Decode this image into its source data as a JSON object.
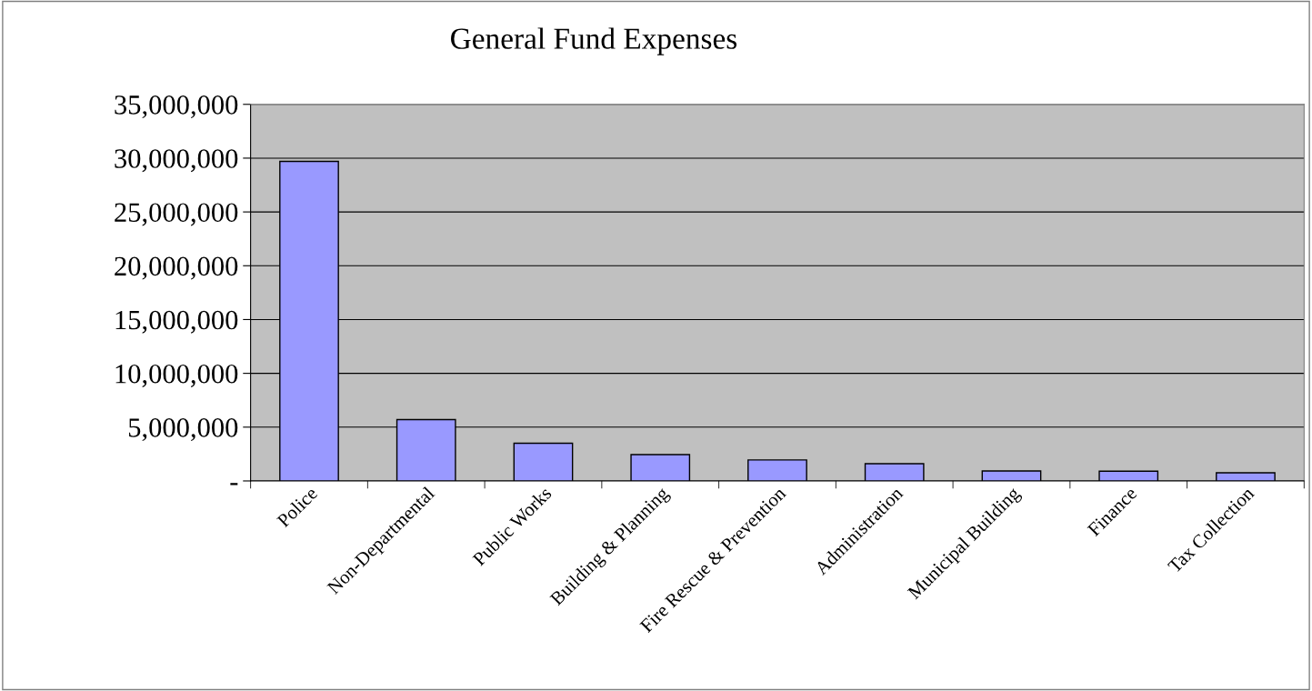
{
  "chart_data": {
    "type": "bar",
    "title": "General Fund Expenses",
    "categories": [
      "Police",
      "Non-Departmental",
      "Public Works",
      "Building & Planning",
      "Fire Rescue & Prevention",
      "Administration",
      "Municipal Building",
      "Finance",
      "Tax Collection"
    ],
    "values": [
      29700000,
      5700000,
      3500000,
      2450000,
      1950000,
      1600000,
      930000,
      900000,
      760000
    ],
    "color": "#9999ff",
    "ylim": [
      0,
      35000000
    ],
    "yticks": [
      {
        "value": 0,
        "label": "-"
      },
      {
        "value": 5000000,
        "label": "5,000,000"
      },
      {
        "value": 10000000,
        "label": "10,000,000"
      },
      {
        "value": 15000000,
        "label": "15,000,000"
      },
      {
        "value": 20000000,
        "label": "20,000,000"
      },
      {
        "value": 25000000,
        "label": "25,000,000"
      },
      {
        "value": 30000000,
        "label": "30,000,000"
      },
      {
        "value": 35000000,
        "label": "35,000,000"
      }
    ],
    "grid": "y",
    "legend": false
  }
}
